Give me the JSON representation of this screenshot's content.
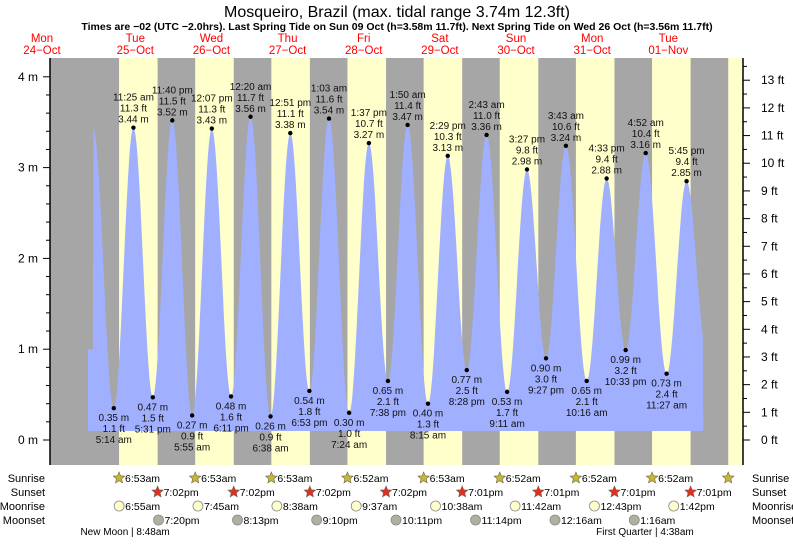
{
  "title": "Mosqueiro, Brazil (max. tidal range 3.74m 12.3ft)",
  "subtitle": "Times are −02 (UTC −2.0hrs). Last Spring Tide on Sun 09 Oct (h=3.58m 11.7ft). Next Spring Tide on Wed 26 Oct (h=3.56m 11.7ft)",
  "colors": {
    "night": "#a6a6a6",
    "day": "#ffffcc",
    "water": "#a0b0ff",
    "date": "#ff0000",
    "sunrise": "#c8b830",
    "sunset": "#e03020",
    "moonrise": "#ffffcc",
    "moonset": "#b0b0a0"
  },
  "chart_data": {
    "type": "area",
    "title": "Mosqueiro, Brazil (max. tidal range 3.74m 12.3ft)",
    "days": [
      {
        "dow": "Mon",
        "date": "24−Oct",
        "offset": -1
      },
      {
        "dow": "Tue",
        "date": "25−Oct",
        "offset": 0
      },
      {
        "dow": "Wed",
        "date": "26−Oct",
        "offset": 1
      },
      {
        "dow": "Thu",
        "date": "27−Oct",
        "offset": 2
      },
      {
        "dow": "Fri",
        "date": "28−Oct",
        "offset": 3
      },
      {
        "dow": "Sat",
        "date": "29−Oct",
        "offset": 4
      },
      {
        "dow": "Sun",
        "date": "30−Oct",
        "offset": 5
      },
      {
        "dow": "Mon",
        "date": "31−Oct",
        "offset": 6
      },
      {
        "dow": "Tue",
        "date": "01−Nov",
        "offset": 7
      }
    ],
    "y_left": {
      "unit": "m",
      "ticks": [
        {
          "v": 0,
          "label": "0 m"
        },
        {
          "v": 1,
          "label": "1 m"
        },
        {
          "v": 2,
          "label": "2 m"
        },
        {
          "v": 3,
          "label": "3 m"
        },
        {
          "v": 4,
          "label": "4 m"
        }
      ]
    },
    "y_right": {
      "unit": "ft",
      "ticks": [
        "0 ft",
        "1 ft",
        "2 ft",
        "3 ft",
        "4 ft",
        "5 ft",
        "6 ft",
        "7 ft",
        "8 ft",
        "9 ft",
        "10 ft",
        "11 ft",
        "12 ft",
        "13 ft"
      ]
    },
    "ylim_m": [
      -0.1,
      4.2
    ],
    "extremes": [
      {
        "type": "H",
        "hour": -1.3,
        "m": 3.44,
        "show": false
      },
      {
        "type": "L",
        "hour": 5.23,
        "m": 0.35,
        "m_label": "0.35 m",
        "ft": "1.1 ft",
        "time": "5:14 am",
        "show": true
      },
      {
        "type": "H",
        "hour": 11.42,
        "m": 3.44,
        "m_label": "3.44 m",
        "ft": "11.3 ft",
        "time": "11:25 am",
        "show": true
      },
      {
        "type": "L",
        "hour": 17.52,
        "m": 0.47,
        "m_label": "0.47 m",
        "ft": "1.5 ft",
        "time": "5:31 pm",
        "show": true
      },
      {
        "type": "H",
        "hour": 23.67,
        "m": 3.52,
        "m_label": "3.52 m",
        "ft": "11.5 ft",
        "time": "11:40 pm",
        "show": true
      },
      {
        "type": "L",
        "hour": 29.92,
        "m": 0.27,
        "m_label": "0.27 m",
        "ft": "0.9 ft",
        "time": "5:55 am",
        "show": true
      },
      {
        "type": "H",
        "hour": 36.12,
        "m": 3.43,
        "m_label": "3.43 m",
        "ft": "11.3 ft",
        "time": "12:07 pm",
        "show": true
      },
      {
        "type": "L",
        "hour": 42.18,
        "m": 0.48,
        "m_label": "0.48 m",
        "ft": "1.6 ft",
        "time": "6:11 pm",
        "show": true
      },
      {
        "type": "H",
        "hour": 48.33,
        "m": 3.56,
        "m_label": "3.56 m",
        "ft": "11.7 ft",
        "time": "12:20 am",
        "show": true
      },
      {
        "type": "L",
        "hour": 54.63,
        "m": 0.26,
        "m_label": "0.26 m",
        "ft": "0.9 ft",
        "time": "6:38 am",
        "show": true
      },
      {
        "type": "H",
        "hour": 60.85,
        "m": 3.38,
        "m_label": "3.38 m",
        "ft": "11.1 ft",
        "time": "12:51 pm",
        "show": true
      },
      {
        "type": "L",
        "hour": 66.88,
        "m": 0.54,
        "m_label": "0.54 m",
        "ft": "1.8 ft",
        "time": "6:53 pm",
        "show": true
      },
      {
        "type": "H",
        "hour": 73.05,
        "m": 3.54,
        "m_label": "3.54 m",
        "ft": "11.6 ft",
        "time": "1:03 am",
        "show": true
      },
      {
        "type": "L",
        "hour": 79.4,
        "m": 0.3,
        "m_label": "0.30 m",
        "ft": "1.0 ft",
        "time": "7:24 am",
        "show": true
      },
      {
        "type": "H",
        "hour": 85.62,
        "m": 3.27,
        "m_label": "3.27 m",
        "ft": "10.7 ft",
        "time": "1:37 pm",
        "show": true
      },
      {
        "type": "L",
        "hour": 91.63,
        "m": 0.65,
        "m_label": "0.65 m",
        "ft": "2.1 ft",
        "time": "7:38 pm",
        "show": true
      },
      {
        "type": "H",
        "hour": 97.83,
        "m": 3.47,
        "m_label": "3.47 m",
        "ft": "11.4 ft",
        "time": "1:50 am",
        "show": true
      },
      {
        "type": "L",
        "hour": 104.25,
        "m": 0.4,
        "m_label": "0.40 m",
        "ft": "1.3 ft",
        "time": "8:15 am",
        "show": true
      },
      {
        "type": "H",
        "hour": 110.48,
        "m": 3.13,
        "m_label": "3.13 m",
        "ft": "10.3 ft",
        "time": "2:29 pm",
        "show": true
      },
      {
        "type": "L",
        "hour": 116.47,
        "m": 0.77,
        "m_label": "0.77 m",
        "ft": "2.5 ft",
        "time": "8:28 pm",
        "show": true
      },
      {
        "type": "H",
        "hour": 122.72,
        "m": 3.36,
        "m_label": "3.36 m",
        "ft": "11.0 ft",
        "time": "2:43 am",
        "show": true
      },
      {
        "type": "L",
        "hour": 129.18,
        "m": 0.53,
        "m_label": "0.53 m",
        "ft": "1.7 ft",
        "time": "9:11 am",
        "show": true
      },
      {
        "type": "H",
        "hour": 135.45,
        "m": 2.98,
        "m_label": "2.98 m",
        "ft": "9.8 ft",
        "time": "3:27 pm",
        "show": true
      },
      {
        "type": "L",
        "hour": 141.45,
        "m": 0.9,
        "m_label": "0.90 m",
        "ft": "3.0 ft",
        "time": "9:27 pm",
        "show": true
      },
      {
        "type": "H",
        "hour": 147.72,
        "m": 3.24,
        "m_label": "3.24 m",
        "ft": "10.6 ft",
        "time": "3:43 am",
        "show": true
      },
      {
        "type": "L",
        "hour": 154.27,
        "m": 0.65,
        "m_label": "0.65 m",
        "ft": "2.1 ft",
        "time": "10:16 am",
        "show": true
      },
      {
        "type": "H",
        "hour": 160.55,
        "m": 2.88,
        "m_label": "2.88 m",
        "ft": "9.4 ft",
        "time": "4:33 pm",
        "show": true
      },
      {
        "type": "L",
        "hour": 166.55,
        "m": 0.99,
        "m_label": "0.99 m",
        "ft": "3.2 ft",
        "time": "10:33 pm",
        "show": true
      },
      {
        "type": "H",
        "hour": 172.87,
        "m": 3.16,
        "m_label": "3.16 m",
        "ft": "10.4 ft",
        "time": "4:52 am",
        "show": true
      },
      {
        "type": "L",
        "hour": 179.45,
        "m": 0.73,
        "m_label": "0.73 m",
        "ft": "2.4 ft",
        "time": "11:27 am",
        "show": true
      },
      {
        "type": "H",
        "hour": 185.75,
        "m": 2.85,
        "m_label": "2.85 m",
        "ft": "9.4 ft",
        "time": "5:45 pm",
        "show": true
      },
      {
        "type": "L",
        "hour": 192.0,
        "m": 1.0,
        "show": false
      }
    ],
    "curve_range_hours": [
      -2.9,
      191.0
    ]
  },
  "astro": {
    "labels": {
      "sunrise": "Sunrise",
      "sunset": "Sunset",
      "moonrise": "Moonrise",
      "moonset": "Moonset"
    },
    "sunrise": [
      {
        "d": 0,
        "h": 6.88,
        "t": "6:53am"
      },
      {
        "d": 1,
        "h": 6.88,
        "t": "6:53am"
      },
      {
        "d": 2,
        "h": 6.88,
        "t": "6:53am"
      },
      {
        "d": 3,
        "h": 6.87,
        "t": "6:52am"
      },
      {
        "d": 4,
        "h": 6.88,
        "t": "6:53am"
      },
      {
        "d": 5,
        "h": 6.87,
        "t": "6:52am"
      },
      {
        "d": 6,
        "h": 6.87,
        "t": "6:52am"
      },
      {
        "d": 7,
        "h": 6.87,
        "t": "6:52am"
      },
      {
        "d": 8,
        "h": 6.87,
        "t": ""
      }
    ],
    "sunset": [
      {
        "d": 0,
        "h": 19.03,
        "t": "7:02pm"
      },
      {
        "d": 1,
        "h": 19.03,
        "t": "7:02pm"
      },
      {
        "d": 2,
        "h": 19.03,
        "t": "7:02pm"
      },
      {
        "d": 3,
        "h": 19.03,
        "t": "7:02pm"
      },
      {
        "d": 4,
        "h": 19.02,
        "t": "7:01pm"
      },
      {
        "d": 5,
        "h": 19.02,
        "t": "7:01pm"
      },
      {
        "d": 6,
        "h": 19.02,
        "t": "7:01pm"
      },
      {
        "d": 7,
        "h": 19.02,
        "t": "7:01pm"
      }
    ],
    "moonrise": [
      {
        "d": 0,
        "h": 6.92,
        "t": "6:55am"
      },
      {
        "d": 1,
        "h": 7.75,
        "t": "7:45am"
      },
      {
        "d": 2,
        "h": 8.63,
        "t": "8:38am"
      },
      {
        "d": 3,
        "h": 9.62,
        "t": "9:37am"
      },
      {
        "d": 4,
        "h": 10.63,
        "t": "10:38am"
      },
      {
        "d": 5,
        "h": 11.7,
        "t": "11:42am"
      },
      {
        "d": 6,
        "h": 12.72,
        "t": "12:43pm"
      },
      {
        "d": 7,
        "h": 13.7,
        "t": "1:42pm"
      }
    ],
    "moonset": [
      {
        "d": 0,
        "h": 19.33,
        "t": "7:20pm"
      },
      {
        "d": 1,
        "h": 20.22,
        "t": "8:13pm"
      },
      {
        "d": 2,
        "h": 21.17,
        "t": "9:10pm"
      },
      {
        "d": 3,
        "h": 22.18,
        "t": "10:11pm"
      },
      {
        "d": 4,
        "h": 23.23,
        "t": "11:14pm"
      },
      {
        "d": 6,
        "h": 0.27,
        "t": "12:16am"
      },
      {
        "d": 7,
        "h": 1.27,
        "t": "1:16am"
      }
    ],
    "phases": [
      {
        "d": 0,
        "h": 8.8,
        "t": "New Moon | 8:48am"
      },
      {
        "d": 7,
        "h": 4.63,
        "t": "First Quarter | 4:38am"
      }
    ]
  }
}
